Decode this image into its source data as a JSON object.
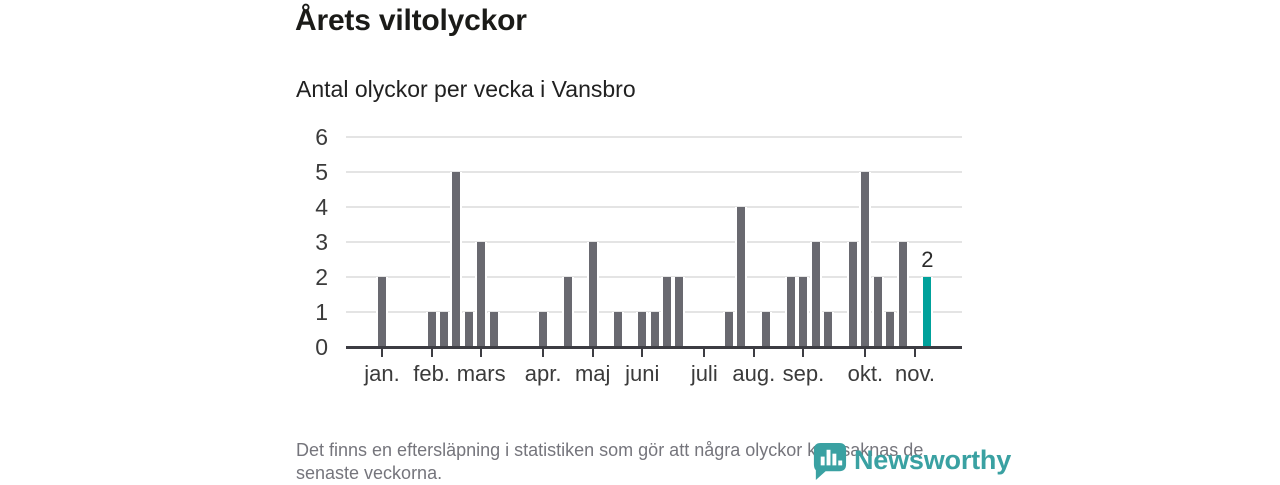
{
  "page": {
    "title": "Årets viltolyckor",
    "subtitle": "Antal olyckor per vecka i Vansbro",
    "footnote_line1": "Det finns en eftersläpning i statistiken som gör att några olyckor kan saknas de",
    "footnote_line2": "senaste veckorna."
  },
  "branding": {
    "name": "Newsworthy",
    "color": "#3aa1a2",
    "icon": "bar-chart-speech-bubble"
  },
  "chart_data": {
    "type": "bar",
    "title": "Årets viltolyckor",
    "subtitle": "Antal olyckor per vecka i Vansbro",
    "xlabel": "",
    "ylabel": "",
    "x_unit": "week-of-year",
    "first_week": 1,
    "values": [
      2,
      0,
      0,
      0,
      1,
      1,
      5,
      1,
      3,
      1,
      0,
      0,
      0,
      1,
      0,
      2,
      0,
      3,
      0,
      1,
      0,
      1,
      1,
      2,
      2,
      0,
      0,
      0,
      1,
      4,
      0,
      1,
      0,
      2,
      2,
      3,
      1,
      0,
      3,
      5,
      2,
      1,
      3,
      0,
      2
    ],
    "ylim": [
      0,
      6
    ],
    "yticks": [
      0,
      1,
      2,
      3,
      4,
      5,
      6
    ],
    "grid": true,
    "legend": "none",
    "month_ticks": [
      {
        "label": "jan.",
        "week": 1
      },
      {
        "label": "feb.",
        "week": 5
      },
      {
        "label": "mars",
        "week": 9
      },
      {
        "label": "apr.",
        "week": 14
      },
      {
        "label": "maj",
        "week": 18
      },
      {
        "label": "juni",
        "week": 22
      },
      {
        "label": "juli",
        "week": 27
      },
      {
        "label": "aug.",
        "week": 31
      },
      {
        "label": "sep.",
        "week": 35
      },
      {
        "label": "okt.",
        "week": 40
      },
      {
        "label": "nov.",
        "week": 44
      }
    ],
    "highlight": {
      "week": 45,
      "value": 2,
      "data_label": "2"
    },
    "colors": {
      "bar": "#696970",
      "highlight": "#00a19b",
      "grid": "#e4e4e4",
      "axis": "#3c3c42",
      "tick_text": "#3b3b3b"
    }
  }
}
